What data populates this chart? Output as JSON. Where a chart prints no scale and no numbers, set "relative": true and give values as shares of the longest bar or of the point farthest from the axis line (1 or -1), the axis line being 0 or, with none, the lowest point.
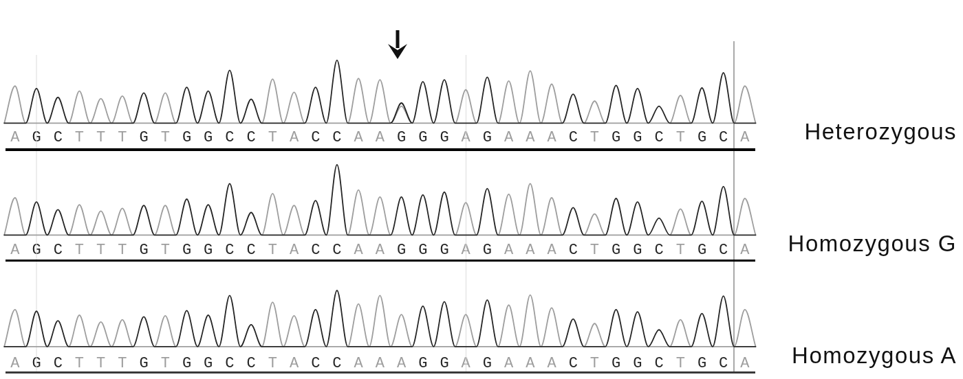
{
  "chart_data": [
    {
      "type": "line",
      "y2label": "Heterozygous",
      "relative": true,
      "categories": [
        null,
        "A",
        null,
        "G",
        null,
        "C",
        null,
        "T",
        null,
        "T",
        null,
        "T",
        null,
        "G",
        null,
        "T",
        null,
        "G",
        null,
        "G",
        null,
        "C",
        null,
        "C",
        null,
        "T",
        null,
        "A",
        null,
        "C",
        null,
        "C",
        null,
        "A",
        null,
        "A",
        null,
        "G",
        null,
        "G",
        null,
        "G",
        null,
        "A",
        null,
        "G",
        null,
        "A",
        null,
        "A",
        null,
        "A",
        null,
        "C",
        null,
        "T",
        null,
        "G",
        null,
        "G",
        null,
        "C",
        null,
        "T",
        null,
        "G",
        null,
        "C",
        null,
        "A",
        null
      ],
      "series": [
        {
          "color": "#262626",
          "values": [
            0,
            0,
            0,
            0.55,
            0,
            0.41,
            0,
            0,
            0,
            0,
            0,
            0,
            0,
            0.48,
            0,
            0,
            0,
            0.57,
            0,
            0.51,
            0,
            0.84,
            0,
            0.38,
            0,
            0,
            0,
            0,
            0,
            0.57,
            0,
            1,
            0,
            0,
            0,
            0,
            0,
            0.32,
            0,
            0.66,
            0,
            0.69,
            0,
            0,
            0,
            0.73,
            0,
            0,
            0,
            0,
            0,
            0,
            0,
            0.46,
            0,
            0,
            0,
            0.6,
            0,
            0.55,
            0,
            0.27,
            0,
            0,
            0,
            0.56,
            0,
            0.8,
            0,
            0,
            0
          ]
        },
        {
          "color": "#9e9e9e",
          "values": [
            0,
            0.59,
            0,
            0,
            0,
            0,
            0,
            0.51,
            0,
            0.39,
            0,
            0.43,
            0,
            0,
            0,
            0.48,
            0,
            0,
            0,
            0,
            0,
            0,
            0,
            0,
            0,
            0.7,
            0,
            0.49,
            0,
            0,
            0,
            0,
            0,
            0.71,
            0,
            0.69,
            0,
            0.27,
            0,
            0,
            0,
            0,
            0,
            0.53,
            0,
            0,
            0,
            0.67,
            0,
            0.83,
            0,
            0.62,
            0,
            0,
            0,
            0.35,
            0,
            0,
            0,
            0,
            0,
            0,
            0,
            0.44,
            0,
            0,
            0,
            0,
            0,
            0.59,
            0
          ]
        }
      ]
    },
    {
      "type": "line",
      "y2label": "Homozygous G",
      "relative": true,
      "categories": [
        null,
        "A",
        null,
        "G",
        null,
        "C",
        null,
        "T",
        null,
        "T",
        null,
        "T",
        null,
        "G",
        null,
        "T",
        null,
        "G",
        null,
        "G",
        null,
        "C",
        null,
        "C",
        null,
        "T",
        null,
        "A",
        null,
        "C",
        null,
        "C",
        null,
        "A",
        null,
        "A",
        null,
        "G",
        null,
        "G",
        null,
        "G",
        null,
        "A",
        null,
        "G",
        null,
        "A",
        null,
        "A",
        null,
        "A",
        null,
        "C",
        null,
        "T",
        null,
        "G",
        null,
        "G",
        null,
        "C",
        null,
        "T",
        null,
        "G",
        null,
        "C",
        null,
        "A",
        null
      ],
      "series": [
        {
          "color": "#262626",
          "values": [
            0,
            0,
            0,
            0.47,
            0,
            0.36,
            0,
            0,
            0,
            0,
            0,
            0,
            0,
            0.42,
            0,
            0,
            0,
            0.51,
            0,
            0.43,
            0,
            0.73,
            0,
            0.32,
            0,
            0,
            0,
            0,
            0,
            0.49,
            0,
            1,
            0,
            0,
            0,
            0,
            0,
            0.54,
            0,
            0.57,
            0,
            0.61,
            0,
            0,
            0,
            0.66,
            0,
            0,
            0,
            0,
            0,
            0,
            0,
            0.39,
            0,
            0,
            0,
            0.52,
            0,
            0.47,
            0,
            0.24,
            0,
            0,
            0,
            0.48,
            0,
            0.69,
            0,
            0,
            0
          ]
        },
        {
          "color": "#9e9e9e",
          "values": [
            0,
            0.53,
            0,
            0,
            0,
            0,
            0,
            0.43,
            0,
            0.34,
            0,
            0.38,
            0,
            0,
            0,
            0.42,
            0,
            0,
            0,
            0,
            0,
            0,
            0,
            0,
            0,
            0.59,
            0,
            0.42,
            0,
            0,
            0,
            0,
            0,
            0.64,
            0,
            0.54,
            0,
            0,
            0,
            0,
            0,
            0,
            0,
            0.46,
            0,
            0,
            0,
            0.58,
            0,
            0.73,
            0,
            0.53,
            0,
            0,
            0,
            0.3,
            0,
            0,
            0,
            0,
            0,
            0,
            0,
            0.37,
            0,
            0,
            0,
            0,
            0,
            0.52,
            0
          ]
        }
      ]
    },
    {
      "type": "line",
      "y2label": "Homozygous A",
      "relative": true,
      "categories": [
        null,
        "A",
        null,
        "G",
        null,
        "C",
        null,
        "T",
        null,
        "T",
        null,
        "T",
        null,
        "G",
        null,
        "T",
        null,
        "G",
        null,
        "G",
        null,
        "C",
        null,
        "C",
        null,
        "T",
        null,
        "A",
        null,
        "C",
        null,
        "C",
        null,
        "A",
        null,
        "A",
        null,
        "A",
        null,
        "G",
        null,
        "G",
        null,
        "A",
        null,
        "G",
        null,
        "A",
        null,
        "A",
        null,
        "A",
        null,
        "C",
        null,
        "T",
        null,
        "G",
        null,
        "G",
        null,
        "C",
        null,
        "T",
        null,
        "G",
        null,
        "C",
        null,
        "A",
        null
      ],
      "series": [
        {
          "color": "#262626",
          "values": [
            0,
            0,
            0,
            0.63,
            0,
            0.46,
            0,
            0,
            0,
            0,
            0,
            0,
            0,
            0.53,
            0,
            0,
            0,
            0.64,
            0,
            0.56,
            0,
            0.91,
            0,
            0.39,
            0,
            0,
            0,
            0,
            0,
            0.66,
            0,
            1,
            0,
            0,
            0,
            0,
            0,
            0,
            0,
            0.72,
            0,
            0.8,
            0,
            0,
            0,
            0.83,
            0,
            0,
            0,
            0,
            0,
            0,
            0,
            0.49,
            0,
            0,
            0,
            0.66,
            0,
            0.62,
            0,
            0.3,
            0,
            0,
            0,
            0.59,
            0,
            0.9,
            0,
            0,
            0
          ]
        },
        {
          "color": "#9e9e9e",
          "values": [
            0,
            0.66,
            0,
            0,
            0,
            0,
            0,
            0.56,
            0,
            0.44,
            0,
            0.48,
            0,
            0,
            0,
            0.55,
            0,
            0,
            0,
            0,
            0,
            0,
            0,
            0,
            0,
            0.79,
            0,
            0.55,
            0,
            0,
            0,
            0,
            0,
            0.76,
            0,
            0.91,
            0,
            0.57,
            0,
            0,
            0,
            0,
            0,
            0.57,
            0,
            0,
            0,
            0.74,
            0,
            0.92,
            0,
            0.69,
            0,
            0,
            0,
            0.41,
            0,
            0,
            0,
            0,
            0,
            0,
            0,
            0.48,
            0,
            0,
            0,
            0,
            0,
            0.66,
            0
          ]
        }
      ]
    }
  ]
}
